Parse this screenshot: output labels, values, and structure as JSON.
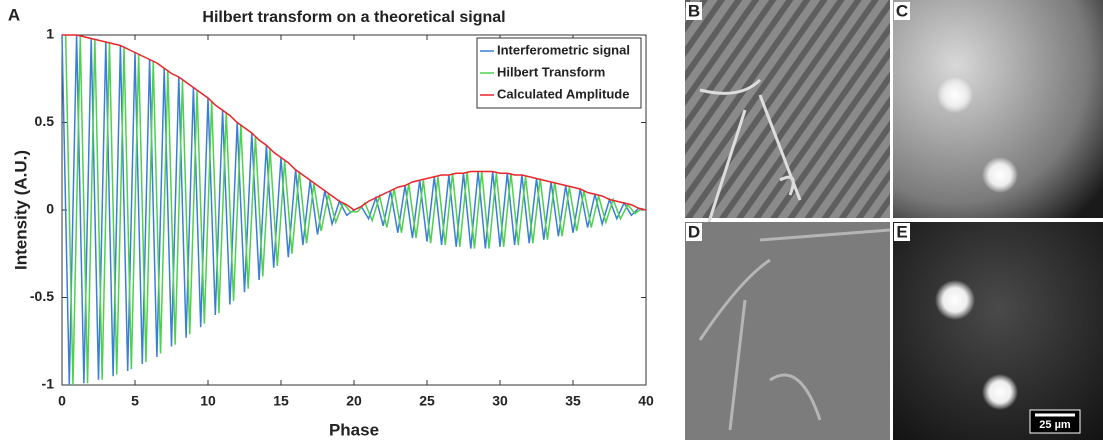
{
  "chart_data": {
    "type": "line",
    "panel_label": "A",
    "title": "Hilbert transform on a theoretical signal",
    "x_label": "Phase",
    "y_label": "Intensity (A.U.)",
    "xlim": [
      0,
      40
    ],
    "ylim": [
      -1,
      1
    ],
    "xticks": [
      0,
      5,
      10,
      15,
      20,
      25,
      30,
      35,
      40
    ],
    "yticks": [
      -1,
      -0.5,
      0,
      0.5,
      1
    ],
    "grid": false,
    "legend": "top-right",
    "x": [
      0,
      0.5,
      1,
      1.5,
      2,
      2.5,
      3,
      3.5,
      4,
      4.5,
      5,
      5.5,
      6,
      6.5,
      7,
      7.5,
      8,
      8.5,
      9,
      9.5,
      10,
      10.5,
      11,
      11.5,
      12,
      12.5,
      13,
      13.5,
      14,
      14.5,
      15,
      15.5,
      16,
      16.5,
      17,
      17.5,
      18,
      18.5,
      19,
      19.5,
      20,
      20.5,
      21,
      21.5,
      22,
      22.5,
      23,
      23.5,
      24,
      24.5,
      25,
      25.5,
      26,
      26.5,
      27,
      27.5,
      28,
      28.5,
      29,
      29.5,
      30,
      30.5,
      31,
      31.5,
      32,
      32.5,
      33,
      33.5,
      34,
      34.5,
      35,
      35.5,
      36,
      36.5,
      37,
      37.5,
      38,
      38.5,
      39,
      39.5,
      40
    ],
    "series": [
      {
        "name": "Interferometric signal",
        "color": "#3a7fd5",
        "values": [
          1,
          -1,
          1,
          -0.99,
          0.98,
          -0.97,
          0.96,
          -0.95,
          0.94,
          -0.92,
          0.9,
          -0.88,
          0.86,
          -0.84,
          0.81,
          -0.78,
          0.76,
          -0.73,
          0.7,
          -0.67,
          0.64,
          -0.6,
          0.57,
          -0.54,
          0.5,
          -0.47,
          0.44,
          -0.4,
          0.37,
          -0.33,
          0.3,
          -0.27,
          0.23,
          -0.2,
          0.17,
          -0.14,
          0.11,
          -0.08,
          0.05,
          -0.03,
          0,
          0.02,
          -0.05,
          0.07,
          -0.09,
          0.11,
          -0.13,
          0.14,
          -0.16,
          0.17,
          -0.18,
          0.19,
          -0.2,
          0.2,
          -0.21,
          0.21,
          -0.22,
          0.22,
          -0.22,
          0.22,
          -0.21,
          0.21,
          -0.2,
          0.2,
          -0.19,
          0.18,
          -0.17,
          0.16,
          -0.15,
          0.14,
          -0.13,
          0.12,
          -0.1,
          0.09,
          -0.08,
          0.06,
          -0.05,
          0.04,
          -0.03,
          0.01,
          0
        ]
      },
      {
        "name": "Hilbert Transform",
        "color": "#4fd04f",
        "x": [
          0.25,
          0.75,
          1.25,
          1.75,
          2.25,
          2.75,
          3.25,
          3.75,
          4.25,
          4.75,
          5.25,
          5.75,
          6.25,
          6.75,
          7.25,
          7.75,
          8.25,
          8.75,
          9.25,
          9.75,
          10.25,
          10.75,
          11.25,
          11.75,
          12.25,
          12.75,
          13.25,
          13.75,
          14.25,
          14.75,
          15.25,
          15.75,
          16.25,
          16.75,
          17.25,
          17.75,
          18.25,
          18.75,
          19.25,
          19.75,
          20.25,
          20.75,
          21.25,
          21.75,
          22.25,
          22.75,
          23.25,
          23.75,
          24.25,
          24.75,
          25.25,
          25.75,
          26.25,
          26.75,
          27.25,
          27.75,
          28.25,
          28.75,
          29.25,
          29.75,
          30.25,
          30.75,
          31.25,
          31.75,
          32.25,
          32.75,
          33.25,
          33.75,
          34.25,
          34.75,
          35.25,
          35.75,
          36.25,
          36.75,
          37.25,
          37.75,
          38.25,
          38.75,
          39.25,
          39.75
        ],
        "values": [
          1,
          -1,
          0.99,
          -0.99,
          0.98,
          -0.97,
          0.96,
          -0.94,
          0.93,
          -0.91,
          0.89,
          -0.87,
          0.85,
          -0.82,
          0.8,
          -0.77,
          0.74,
          -0.71,
          0.68,
          -0.65,
          0.62,
          -0.59,
          0.56,
          -0.52,
          0.49,
          -0.45,
          0.42,
          -0.38,
          0.35,
          -0.32,
          0.28,
          -0.25,
          0.22,
          -0.19,
          0.15,
          -0.12,
          0.09,
          -0.07,
          0.04,
          -0.01,
          -0.01,
          0.04,
          -0.06,
          0.08,
          -0.1,
          0.12,
          -0.13,
          0.15,
          -0.16,
          0.17,
          -0.19,
          0.19,
          -0.2,
          0.21,
          -0.21,
          0.22,
          -0.22,
          0.22,
          -0.22,
          0.21,
          -0.21,
          0.21,
          -0.2,
          0.19,
          -0.19,
          0.18,
          -0.17,
          0.16,
          -0.15,
          0.13,
          -0.12,
          0.11,
          -0.1,
          0.08,
          -0.07,
          0.06,
          -0.05,
          0.03,
          -0.02,
          0.01
        ]
      },
      {
        "name": "Calculated Amplitude",
        "color": "#e8262a",
        "values": [
          1,
          1,
          1,
          0.99,
          0.98,
          0.97,
          0.96,
          0.95,
          0.94,
          0.92,
          0.9,
          0.88,
          0.86,
          0.84,
          0.81,
          0.78,
          0.76,
          0.73,
          0.7,
          0.67,
          0.64,
          0.6,
          0.57,
          0.54,
          0.5,
          0.47,
          0.44,
          0.4,
          0.37,
          0.33,
          0.3,
          0.27,
          0.23,
          0.2,
          0.17,
          0.14,
          0.11,
          0.08,
          0.05,
          0.03,
          0,
          0.02,
          0.05,
          0.07,
          0.09,
          0.11,
          0.13,
          0.14,
          0.16,
          0.17,
          0.18,
          0.19,
          0.2,
          0.2,
          0.21,
          0.21,
          0.22,
          0.22,
          0.22,
          0.22,
          0.21,
          0.21,
          0.2,
          0.2,
          0.19,
          0.18,
          0.17,
          0.16,
          0.15,
          0.14,
          0.13,
          0.12,
          0.1,
          0.09,
          0.08,
          0.06,
          0.05,
          0.04,
          0.03,
          0.01,
          0
        ]
      }
    ]
  },
  "images": {
    "labels": [
      "B",
      "C",
      "D",
      "E"
    ],
    "scale_bar": "25 µm"
  }
}
